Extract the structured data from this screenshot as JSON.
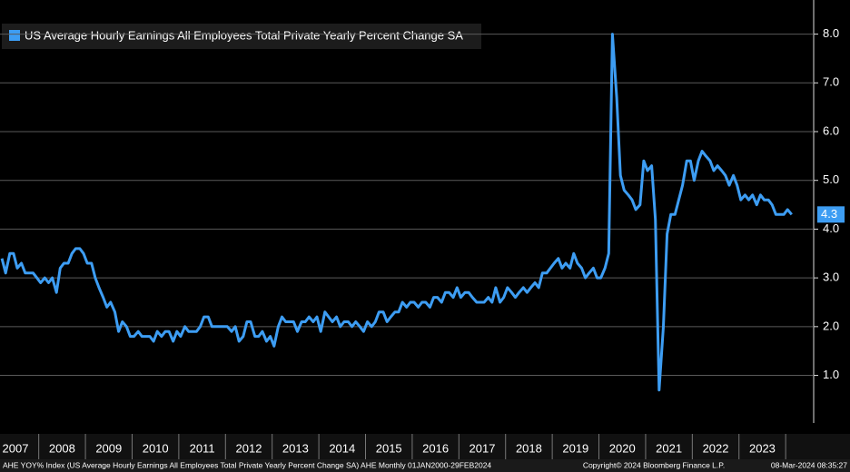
{
  "chart_data": {
    "type": "line",
    "legend": "US Average Hourly Earnings All Employees Total Private Yearly Percent Change SA",
    "footer": [
      "AHE YOY% Index (US Average Hourly Earnings All Employees Total Private Yearly Percent Change SA) AHE  Monthly 01JAN2000-29FEB2024",
      "Copyright© 2024 Bloomberg Finance L.P.",
      "08-Mar-2024 08:35:27"
    ],
    "last_value_label": "4.3",
    "xlim": [
      2007.17,
      2024.6
    ],
    "xticks": [
      2007,
      2008,
      2009,
      2010,
      2011,
      2012,
      2013,
      2014,
      2015,
      2016,
      2017,
      2018,
      2019,
      2020,
      2021,
      2022,
      2023
    ],
    "ylim": [
      -0.2,
      8.7
    ],
    "yticks": [
      {
        "value": 1,
        "label": "1.0"
      },
      {
        "value": 2,
        "label": "2.0"
      },
      {
        "value": 3,
        "label": "3.0"
      },
      {
        "value": 4,
        "label": "4.0"
      },
      {
        "value": 5,
        "label": "5.0"
      },
      {
        "value": 6,
        "label": "6.0"
      },
      {
        "value": 7,
        "label": "7.0"
      },
      {
        "value": 8,
        "label": "8.0"
      }
    ],
    "grid": true,
    "x": [
      2007.21,
      2007.29,
      2007.38,
      2007.46,
      2007.54,
      2007.63,
      2007.71,
      2007.79,
      2007.88,
      2007.96,
      2008.04,
      2008.13,
      2008.21,
      2008.29,
      2008.38,
      2008.46,
      2008.54,
      2008.63,
      2008.71,
      2008.79,
      2008.88,
      2008.96,
      2009.04,
      2009.13,
      2009.21,
      2009.29,
      2009.38,
      2009.46,
      2009.54,
      2009.63,
      2009.71,
      2009.79,
      2009.88,
      2009.96,
      2010.04,
      2010.13,
      2010.21,
      2010.29,
      2010.38,
      2010.46,
      2010.54,
      2010.63,
      2010.71,
      2010.79,
      2010.88,
      2010.96,
      2011.04,
      2011.13,
      2011.21,
      2011.29,
      2011.38,
      2011.46,
      2011.54,
      2011.63,
      2011.71,
      2011.79,
      2011.88,
      2011.96,
      2012.04,
      2012.13,
      2012.21,
      2012.29,
      2012.38,
      2012.46,
      2012.54,
      2012.63,
      2012.71,
      2012.79,
      2012.88,
      2012.96,
      2013.04,
      2013.13,
      2013.21,
      2013.29,
      2013.38,
      2013.46,
      2013.54,
      2013.63,
      2013.71,
      2013.79,
      2013.88,
      2013.96,
      2014.04,
      2014.13,
      2014.21,
      2014.29,
      2014.38,
      2014.46,
      2014.54,
      2014.63,
      2014.71,
      2014.79,
      2014.88,
      2014.96,
      2015.04,
      2015.13,
      2015.21,
      2015.29,
      2015.38,
      2015.46,
      2015.54,
      2015.63,
      2015.71,
      2015.79,
      2015.88,
      2015.96,
      2016.04,
      2016.13,
      2016.21,
      2016.29,
      2016.38,
      2016.46,
      2016.54,
      2016.63,
      2016.71,
      2016.79,
      2016.88,
      2016.96,
      2017.04,
      2017.13,
      2017.21,
      2017.29,
      2017.38,
      2017.46,
      2017.54,
      2017.63,
      2017.71,
      2017.79,
      2017.88,
      2017.96,
      2018.04,
      2018.13,
      2018.21,
      2018.29,
      2018.38,
      2018.46,
      2018.54,
      2018.63,
      2018.71,
      2018.79,
      2018.88,
      2018.96,
      2019.04,
      2019.13,
      2019.21,
      2019.29,
      2019.38,
      2019.46,
      2019.54,
      2019.63,
      2019.71,
      2019.79,
      2019.88,
      2019.96,
      2020.04,
      2020.13,
      2020.21,
      2020.29,
      2020.38,
      2020.46,
      2020.54,
      2020.63,
      2020.71,
      2020.79,
      2020.88,
      2020.96,
      2021.04,
      2021.13,
      2021.21,
      2021.29,
      2021.38,
      2021.46,
      2021.54,
      2021.63,
      2021.71,
      2021.79,
      2021.88,
      2021.96,
      2022.04,
      2022.13,
      2022.21,
      2022.29,
      2022.38,
      2022.46,
      2022.54,
      2022.63,
      2022.71,
      2022.79,
      2022.88,
      2022.96,
      2023.04,
      2023.13,
      2023.21,
      2023.29,
      2023.38,
      2023.46,
      2023.54,
      2023.63,
      2023.71,
      2023.79,
      2023.88,
      2023.96,
      2024.04,
      2024.13
    ],
    "series": [
      {
        "name": "US Average Hourly Earnings All Employees Total Private Yearly Percent Change SA",
        "color": "#3d9df3",
        "values": [
          3.4,
          3.1,
          3.5,
          3.5,
          3.2,
          3.3,
          3.1,
          3.1,
          3.1,
          3.0,
          2.9,
          3.0,
          2.9,
          3.0,
          2.7,
          3.2,
          3.3,
          3.3,
          3.5,
          3.6,
          3.6,
          3.5,
          3.3,
          3.3,
          3.0,
          2.8,
          2.6,
          2.4,
          2.5,
          2.3,
          1.9,
          2.1,
          2.0,
          1.8,
          1.8,
          1.9,
          1.8,
          1.8,
          1.8,
          1.7,
          1.9,
          1.8,
          1.9,
          1.9,
          1.7,
          1.9,
          1.8,
          2.0,
          1.9,
          1.9,
          1.9,
          2.0,
          2.2,
          2.2,
          2.0,
          2.0,
          2.0,
          2.0,
          2.0,
          1.9,
          2.0,
          1.7,
          1.8,
          2.1,
          2.1,
          1.8,
          1.8,
          1.9,
          1.7,
          1.8,
          1.6,
          2.0,
          2.2,
          2.1,
          2.1,
          2.1,
          1.9,
          2.1,
          2.1,
          2.2,
          2.1,
          2.2,
          1.9,
          2.3,
          2.2,
          2.1,
          2.2,
          2.0,
          2.1,
          2.1,
          2.0,
          2.1,
          2.0,
          1.9,
          2.1,
          2.0,
          2.1,
          2.3,
          2.3,
          2.1,
          2.2,
          2.3,
          2.3,
          2.5,
          2.4,
          2.5,
          2.5,
          2.4,
          2.5,
          2.5,
          2.4,
          2.6,
          2.6,
          2.5,
          2.7,
          2.7,
          2.6,
          2.8,
          2.6,
          2.7,
          2.7,
          2.6,
          2.5,
          2.5,
          2.5,
          2.6,
          2.5,
          2.8,
          2.5,
          2.6,
          2.8,
          2.7,
          2.6,
          2.7,
          2.8,
          2.7,
          2.8,
          2.9,
          2.8,
          3.1,
          3.1,
          3.2,
          3.3,
          3.4,
          3.2,
          3.3,
          3.2,
          3.5,
          3.3,
          3.2,
          3.0,
          3.1,
          3.2,
          3.0,
          3.0,
          3.2,
          3.5,
          8.0,
          6.7,
          5.1,
          4.8,
          4.7,
          4.6,
          4.4,
          4.5,
          5.4,
          5.2,
          5.3,
          4.2,
          0.7,
          2.0,
          3.9,
          4.3,
          4.3,
          4.6,
          4.9,
          5.4,
          5.4,
          5.0,
          5.4,
          5.6,
          5.5,
          5.4,
          5.2,
          5.3,
          5.2,
          5.1,
          4.9,
          5.1,
          4.9,
          4.6,
          4.7,
          4.6,
          4.7,
          4.5,
          4.7,
          4.6,
          4.6,
          4.5,
          4.3,
          4.3,
          4.3,
          4.4,
          4.3
        ]
      }
    ]
  }
}
